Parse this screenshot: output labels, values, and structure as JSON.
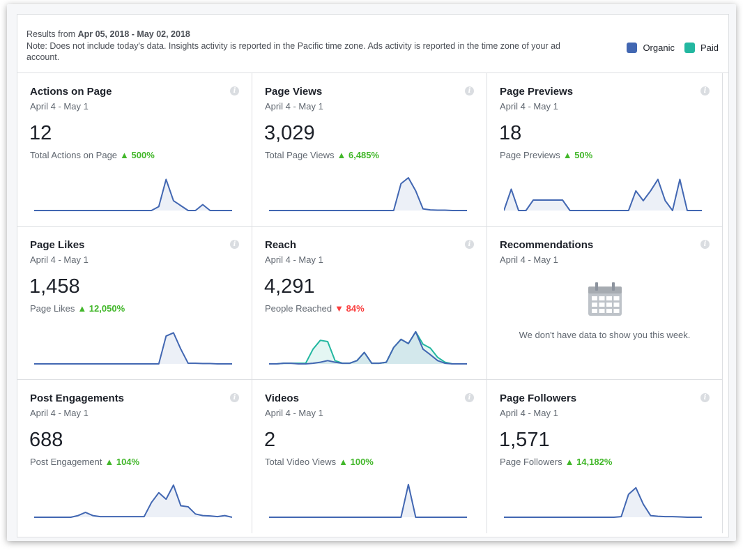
{
  "header": {
    "results_prefix": "Results from",
    "date_range": "Apr 05, 2018 - May 02, 2018",
    "note": "Note: Does not include today's data. Insights activity is reported in the Pacific time zone. Ads activity is reported in the time zone of your ad account."
  },
  "legend": {
    "organic_label": "Organic",
    "paid_label": "Paid",
    "organic_color": "#4267b2",
    "paid_color": "#23b7a0"
  },
  "cards": [
    {
      "title": "Actions on Page",
      "date": "April 4 - May 1",
      "value": "12",
      "sub": "Total Actions on Page",
      "change": "▲ 500%",
      "direction": "up",
      "organic": [
        0,
        0,
        0,
        0,
        0,
        0,
        0,
        0,
        0,
        0,
        0,
        0,
        0,
        0,
        0,
        0,
        0,
        0.12,
        0.95,
        0.3,
        0.15,
        0,
        0,
        0.18,
        0,
        0,
        0,
        0
      ]
    },
    {
      "title": "Page Views",
      "date": "April 4 - May 1",
      "value": "3,029",
      "sub": "Total Page Views",
      "change": "▲ 6,485%",
      "direction": "up",
      "organic": [
        0,
        0,
        0,
        0,
        0,
        0,
        0,
        0,
        0,
        0,
        0,
        0,
        0,
        0,
        0,
        0,
        0,
        0,
        0.82,
        1,
        0.6,
        0.05,
        0.02,
        0.01,
        0.01,
        0,
        0,
        0
      ]
    },
    {
      "title": "Page Previews",
      "date": "April 4 - May 1",
      "value": "18",
      "sub": "Page Previews",
      "change": "▲ 50%",
      "direction": "up",
      "organic": [
        0,
        0.65,
        0,
        0,
        0.32,
        0.32,
        0.32,
        0.32,
        0.32,
        0,
        0,
        0,
        0,
        0,
        0,
        0,
        0,
        0,
        0.6,
        0.3,
        0.6,
        0.95,
        0.3,
        0,
        0.95,
        0,
        0,
        0
      ]
    },
    {
      "title": "Page Likes",
      "date": "April 4 - May 1",
      "value": "1,458",
      "sub": "Page Likes",
      "change": "▲ 12,050%",
      "direction": "up",
      "organic": [
        0,
        0,
        0,
        0,
        0,
        0,
        0,
        0,
        0,
        0,
        0,
        0,
        0,
        0,
        0,
        0,
        0,
        0,
        0.85,
        0.95,
        0.45,
        0.02,
        0.02,
        0.01,
        0.01,
        0,
        0,
        0
      ]
    },
    {
      "title": "Reach",
      "date": "April 4 - May 1",
      "value": "4,291",
      "sub": "People Reached",
      "change": "▼ 84%",
      "direction": "down",
      "organic": [
        0,
        0,
        0.02,
        0.02,
        0,
        0,
        0.02,
        0.05,
        0.1,
        0.05,
        0.02,
        0.02,
        0.1,
        0.35,
        0.02,
        0.02,
        0.05,
        0.5,
        0.75,
        0.62,
        0.98,
        0.45,
        0.28,
        0.1,
        0.02,
        0,
        0,
        0
      ],
      "paid": [
        0,
        0,
        0.02,
        0.02,
        0.02,
        0.02,
        0.45,
        0.72,
        0.68,
        0.1,
        0.02,
        0.02,
        0.1,
        0.35,
        0.02,
        0.02,
        0.05,
        0.5,
        0.75,
        0.62,
        0.98,
        0.6,
        0.48,
        0.2,
        0.05,
        0,
        0,
        0
      ]
    },
    {
      "title": "Recommendations",
      "date": "April 4 - May 1",
      "empty": true,
      "empty_message": "We don't have data to show you this week."
    },
    {
      "title": "Post Engagements",
      "date": "April 4 - May 1",
      "value": "688",
      "sub": "Post Engagement",
      "change": "▲ 104%",
      "direction": "up",
      "organic": [
        0,
        0,
        0,
        0,
        0,
        0,
        0.05,
        0.15,
        0.05,
        0.02,
        0.02,
        0.02,
        0.02,
        0.02,
        0.02,
        0.02,
        0.45,
        0.75,
        0.55,
        0.98,
        0.35,
        0.32,
        0.1,
        0.05,
        0.04,
        0.02,
        0.05,
        0
      ]
    },
    {
      "title": "Videos",
      "date": "April 4 - May 1",
      "value": "2",
      "sub": "Total Video Views",
      "change": "▲ 100%",
      "direction": "up",
      "organic": [
        0,
        0,
        0,
        0,
        0,
        0,
        0,
        0,
        0,
        0,
        0,
        0,
        0,
        0,
        0,
        0,
        0,
        0,
        0,
        1,
        0,
        0,
        0,
        0,
        0,
        0,
        0,
        0
      ]
    },
    {
      "title": "Page Followers",
      "date": "April 4 - May 1",
      "value": "1,571",
      "sub": "Page Followers",
      "change": "▲ 14,182%",
      "direction": "up",
      "organic": [
        0,
        0,
        0,
        0,
        0,
        0,
        0,
        0,
        0,
        0,
        0,
        0,
        0,
        0,
        0,
        0,
        0.02,
        0.7,
        0.9,
        0.4,
        0.05,
        0.03,
        0.02,
        0.02,
        0.01,
        0,
        0,
        0
      ]
    }
  ]
}
